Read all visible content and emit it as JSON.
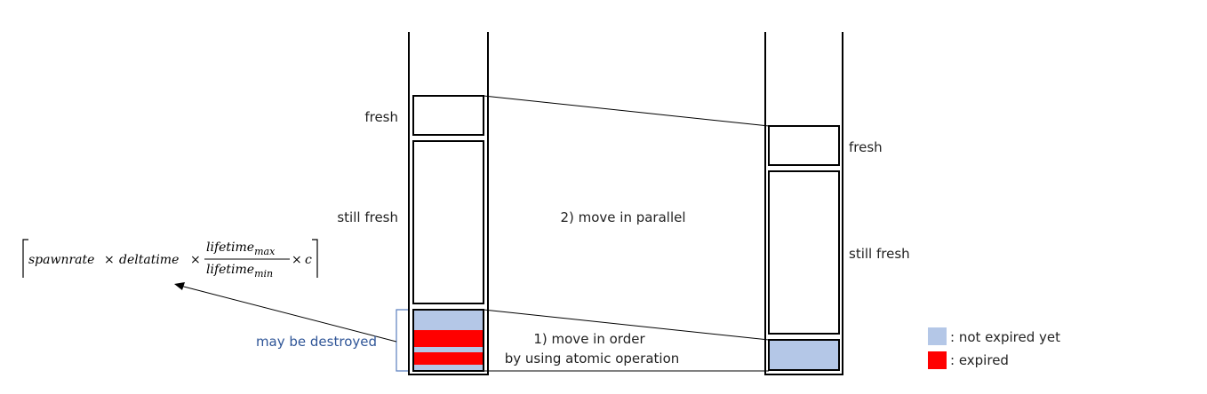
{
  "labels": {
    "left_fresh": "fresh",
    "left_still_fresh": "still fresh",
    "right_fresh": "fresh",
    "right_still_fresh": "still fresh",
    "move_parallel": "2) move in parallel",
    "move_order_line1": "1) move in order",
    "move_order_line2": "by using atomic operation",
    "may_be_destroyed": "may be destroyed"
  },
  "formula": {
    "spawnrate": "spawnrate",
    "times1": "×",
    "deltatime": "deltatime",
    "times2": "×",
    "numerator_base": "lifetime",
    "numerator_sub": "max",
    "denominator_base": "lifetime",
    "denominator_sub": "min",
    "times3": "×",
    "c": "c"
  },
  "legend": {
    "not_expired_label": ": not expired yet",
    "expired_label": ": expired"
  },
  "colors": {
    "not_expired": "#b4c7e7",
    "expired": "#ff0000",
    "stroke": "#000000",
    "brace": "#5b7fbf",
    "destroyed_text": "#2f5597"
  }
}
